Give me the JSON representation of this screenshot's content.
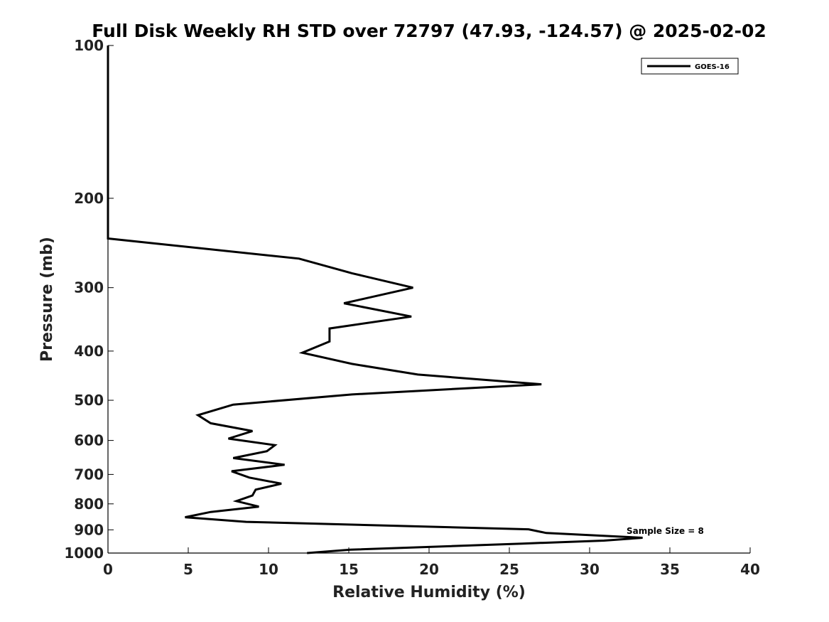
{
  "chart_data": {
    "type": "line",
    "title": "Full Disk Weekly RH STD over 72797 (47.93, -124.57) @ 2025-02-02",
    "xlabel": "Relative Humidity (%)",
    "ylabel": "Pressure (mb)",
    "xlim": [
      0,
      40
    ],
    "ylim": [
      1000,
      100
    ],
    "yscale": "log",
    "y_reversed": true,
    "grid": false,
    "xticks": [
      0,
      5,
      10,
      15,
      20,
      25,
      30,
      35,
      40
    ],
    "xtick_labels": [
      "0",
      "5",
      "10",
      "15",
      "20",
      "25",
      "30",
      "35",
      "40"
    ],
    "yticks": [
      100,
      200,
      300,
      400,
      500,
      600,
      700,
      800,
      900,
      1000
    ],
    "ytick_labels": [
      "100",
      "200",
      "300",
      "400",
      "500",
      "600",
      "700",
      "800",
      "900",
      "1000"
    ],
    "legend": {
      "position": "top-right",
      "entries": [
        "GOES-16"
      ]
    },
    "annotation": "Sample Size = 8",
    "annotation_anchor": {
      "x": 32.3,
      "p": 905
    },
    "series": [
      {
        "name": "GOES-16",
        "color": "#000000",
        "x": [
          0,
          0,
          0,
          11.9,
          15.2,
          19.0,
          14.7,
          18.9,
          13.8,
          13.8,
          12.1,
          15.2,
          19.3,
          27.0,
          15.2,
          7.8,
          5.6,
          6.4,
          9.0,
          7.5,
          10.4,
          9.9,
          7.8,
          11.0,
          7.7,
          8.8,
          10.8,
          9.2,
          9.0,
          8.0,
          9.4,
          6.4,
          4.8,
          8.6,
          26.2,
          27.3,
          33.3,
          30.9,
          25.8,
          15.1,
          12.4
        ],
        "p": [
          100,
          200,
          240,
          263,
          281,
          300,
          322,
          342,
          361,
          383,
          403,
          424,
          445,
          465,
          487,
          510,
          535,
          555,
          575,
          595,
          613,
          630,
          650,
          670,
          690,
          710,
          730,
          750,
          770,
          790,
          810,
          830,
          850,
          868,
          898,
          913,
          933,
          945,
          958,
          985,
          1000
        ]
      }
    ]
  }
}
